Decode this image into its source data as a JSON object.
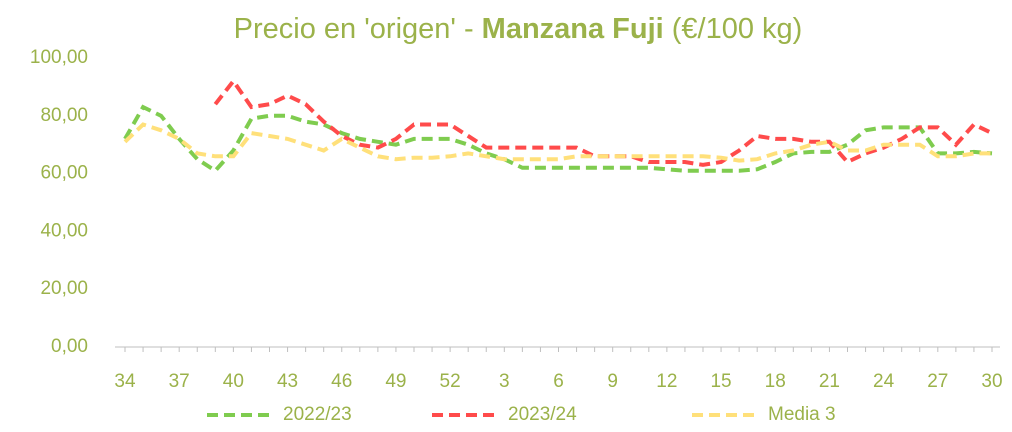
{
  "chart_data": {
    "type": "line",
    "title_parts": [
      "Precio en 'origen' -",
      "Manzana Fuji",
      "(€/100 kg)"
    ],
    "categories": [
      "34",
      null,
      null,
      "37",
      null,
      null,
      "40",
      null,
      null,
      "43",
      null,
      null,
      "46",
      null,
      null,
      "49",
      null,
      null,
      "52",
      null,
      null,
      "3",
      null,
      null,
      "6",
      null,
      null,
      "9",
      null,
      null,
      "12",
      null,
      null,
      "15",
      null,
      null,
      "18",
      null,
      null,
      "21",
      null,
      null,
      "24",
      null,
      null,
      "27",
      null,
      null,
      "30"
    ],
    "series": [
      {
        "name": "2022/23",
        "color": "#7fcc4f",
        "values": [
          72,
          83,
          80,
          72,
          65,
          61,
          68,
          79,
          80,
          80,
          78,
          77,
          74,
          72,
          71,
          70,
          72,
          72,
          72,
          70,
          67,
          65,
          62,
          62,
          62,
          62,
          62,
          62,
          62,
          62,
          61.5,
          61,
          61,
          61,
          61,
          61.5,
          64,
          67,
          67.5,
          67.5,
          70,
          75,
          76,
          76,
          76,
          67,
          67,
          67.5,
          67
        ]
      },
      {
        "name": "2023/24",
        "color": "#ff4b4b",
        "values": [
          null,
          null,
          null,
          null,
          null,
          84,
          92,
          83,
          84,
          87,
          84,
          78,
          73,
          70,
          69,
          72,
          77,
          77,
          77,
          73,
          69,
          69,
          69,
          69,
          69,
          69,
          66,
          66,
          66,
          64,
          64,
          64,
          63,
          64,
          68,
          73,
          72,
          72,
          71,
          71,
          64,
          67,
          69,
          72,
          76,
          76,
          70,
          77,
          74
        ]
      },
      {
        "name": "Media 3",
        "color": "#ffe07a",
        "values": [
          71,
          77,
          75,
          72,
          67,
          66,
          66,
          74,
          73,
          72,
          70,
          68,
          72,
          69,
          66,
          65,
          65.5,
          65.5,
          66,
          67,
          66,
          65,
          65,
          65,
          65,
          66,
          66,
          66,
          66,
          66,
          66,
          66,
          66,
          65.5,
          64.5,
          65,
          67,
          68,
          70,
          71,
          68,
          68,
          70,
          70,
          70,
          66,
          66,
          67,
          67
        ]
      }
    ],
    "ylim": [
      0,
      100
    ],
    "yticks": [
      {
        "value": 0,
        "label": "0,00"
      },
      {
        "value": 20,
        "label": "20,00"
      },
      {
        "value": 40,
        "label": "40,00"
      },
      {
        "value": 60,
        "label": "60,00"
      },
      {
        "value": 80,
        "label": "80,00"
      },
      {
        "value": 100,
        "label": "100,00"
      }
    ],
    "grid": false,
    "legend": "bottom"
  }
}
